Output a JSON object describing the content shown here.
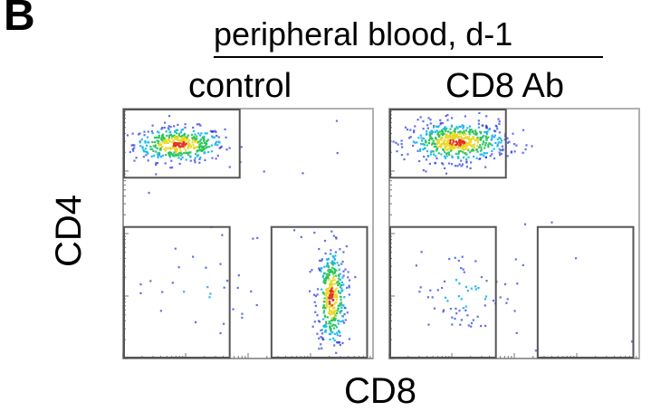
{
  "panel_label": "B",
  "chart_data": {
    "type": "scatter",
    "title": "peripheral blood, d-1",
    "xlabel": "CD8",
    "ylabel": "CD4",
    "scale": "log (flow cytometry density plot)",
    "panels": [
      {
        "name": "control",
        "populations": [
          {
            "gate": "CD4+CD8-",
            "cx": 0.22,
            "cy": 0.86,
            "sx": 0.09,
            "sy": 0.035,
            "n": 420
          },
          {
            "gate": "CD4-CD8+",
            "cx": 0.83,
            "cy": 0.25,
            "sx": 0.03,
            "sy": 0.1,
            "n": 380
          },
          {
            "gate": "CD4-CD8-",
            "cx": 0.3,
            "cy": 0.27,
            "sx": 0.12,
            "sy": 0.08,
            "n": 24
          },
          {
            "gate": "background",
            "cx": 0.5,
            "cy": 0.55,
            "sx": 0.25,
            "sy": 0.2,
            "n": 18
          }
        ],
        "gates": [
          "CD4+CD8-",
          "CD4-CD8-",
          "CD4-CD8+"
        ]
      },
      {
        "name": "CD8 Ab",
        "populations": [
          {
            "gate": "CD4+CD8-",
            "cx": 0.27,
            "cy": 0.87,
            "sx": 0.1,
            "sy": 0.04,
            "n": 560
          },
          {
            "gate": "CD4-CD8-",
            "cx": 0.3,
            "cy": 0.27,
            "sx": 0.11,
            "sy": 0.09,
            "n": 70
          },
          {
            "gate": "background",
            "cx": 0.55,
            "cy": 0.5,
            "sx": 0.25,
            "sy": 0.2,
            "n": 10
          }
        ],
        "gates": [
          "CD4+CD8-",
          "CD4-CD8-",
          "CD4-CD8+"
        ]
      }
    ],
    "density_colormap": [
      "#2233dd",
      "#19b6e8",
      "#27c45a",
      "#e8d820",
      "#e03020"
    ],
    "gate_color": "#555555",
    "axis_color": "#b0b0b0"
  }
}
